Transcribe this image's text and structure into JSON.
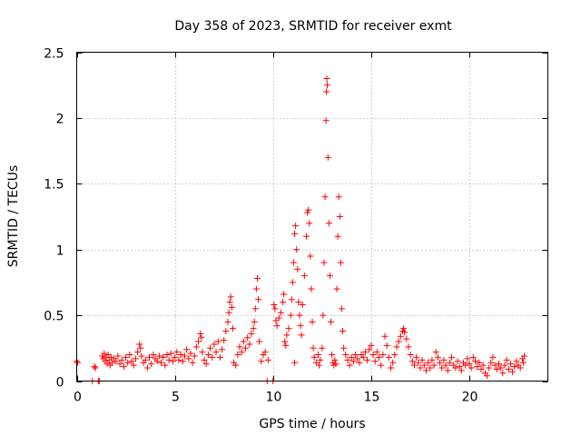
{
  "chart_data": {
    "type": "scatter",
    "title": "Day 358 of 2023, SRMTID for receiver exmt",
    "xlabel": "GPS time / hours",
    "ylabel": "SRMTID / TECUs",
    "xlim": [
      0,
      24
    ],
    "ylim": [
      0,
      2.5
    ],
    "x_ticks": [
      0,
      5,
      10,
      15,
      20
    ],
    "x_tick_labels": [
      "0",
      "5",
      "10",
      "15",
      "20"
    ],
    "y_ticks": [
      0,
      0.5,
      1,
      1.5,
      2,
      2.5
    ],
    "y_tick_labels": [
      "0",
      "0.5",
      "1",
      "1.5",
      "2",
      "2.5"
    ],
    "grid": true,
    "marker": "plus",
    "color": "#ff0000",
    "series": [
      {
        "name": "SRMTID",
        "points": [
          [
            0.0,
            0.15
          ],
          [
            0.05,
            0.14
          ],
          [
            0.8,
            0.0
          ],
          [
            0.9,
            0.11
          ],
          [
            0.95,
            0.1
          ],
          [
            1.1,
            0.0
          ],
          [
            1.15,
            0.0
          ],
          [
            1.3,
            0.19
          ],
          [
            1.35,
            0.17
          ],
          [
            1.4,
            0.21
          ],
          [
            1.45,
            0.15
          ],
          [
            1.5,
            0.18
          ],
          [
            1.55,
            0.13
          ],
          [
            1.6,
            0.2
          ],
          [
            1.65,
            0.16
          ],
          [
            1.7,
            0.12
          ],
          [
            1.75,
            0.18
          ],
          [
            1.8,
            0.14
          ],
          [
            1.9,
            0.17
          ],
          [
            2.0,
            0.15
          ],
          [
            2.1,
            0.19
          ],
          [
            2.2,
            0.13
          ],
          [
            2.3,
            0.16
          ],
          [
            2.4,
            0.11
          ],
          [
            2.5,
            0.18
          ],
          [
            2.6,
            0.14
          ],
          [
            2.7,
            0.2
          ],
          [
            2.8,
            0.15
          ],
          [
            2.9,
            0.12
          ],
          [
            3.0,
            0.17
          ],
          [
            3.1,
            0.22
          ],
          [
            3.2,
            0.28
          ],
          [
            3.25,
            0.25
          ],
          [
            3.3,
            0.19
          ],
          [
            3.4,
            0.14
          ],
          [
            3.5,
            0.16
          ],
          [
            3.6,
            0.1
          ],
          [
            3.7,
            0.18
          ],
          [
            3.8,
            0.13
          ],
          [
            3.9,
            0.2
          ],
          [
            4.0,
            0.17
          ],
          [
            4.1,
            0.15
          ],
          [
            4.2,
            0.19
          ],
          [
            4.3,
            0.14
          ],
          [
            4.4,
            0.18
          ],
          [
            4.5,
            0.12
          ],
          [
            4.6,
            0.2
          ],
          [
            4.7,
            0.16
          ],
          [
            4.8,
            0.21
          ],
          [
            4.9,
            0.15
          ],
          [
            5.0,
            0.18
          ],
          [
            5.1,
            0.22
          ],
          [
            5.2,
            0.16
          ],
          [
            5.3,
            0.2
          ],
          [
            5.4,
            0.15
          ],
          [
            5.5,
            0.19
          ],
          [
            5.6,
            0.24
          ],
          [
            5.7,
            0.17
          ],
          [
            5.8,
            0.21
          ],
          [
            5.9,
            0.14
          ],
          [
            6.0,
            0.19
          ],
          [
            6.1,
            0.26
          ],
          [
            6.2,
            0.3
          ],
          [
            6.3,
            0.36
          ],
          [
            6.35,
            0.33
          ],
          [
            6.4,
            0.22
          ],
          [
            6.5,
            0.16
          ],
          [
            6.6,
            0.13
          ],
          [
            6.7,
            0.2
          ],
          [
            6.8,
            0.25
          ],
          [
            6.9,
            0.18
          ],
          [
            7.0,
            0.28
          ],
          [
            7.1,
            0.22
          ],
          [
            7.2,
            0.3
          ],
          [
            7.3,
            0.18
          ],
          [
            7.4,
            0.24
          ],
          [
            7.5,
            0.31
          ],
          [
            7.6,
            0.38
          ],
          [
            7.7,
            0.45
          ],
          [
            7.75,
            0.52
          ],
          [
            7.8,
            0.6
          ],
          [
            7.85,
            0.64
          ],
          [
            7.9,
            0.56
          ],
          [
            7.95,
            0.4
          ],
          [
            8.0,
            0.14
          ],
          [
            8.1,
            0.12
          ],
          [
            8.2,
            0.2
          ],
          [
            8.3,
            0.26
          ],
          [
            8.4,
            0.22
          ],
          [
            8.5,
            0.3
          ],
          [
            8.6,
            0.25
          ],
          [
            8.7,
            0.33
          ],
          [
            8.8,
            0.28
          ],
          [
            8.9,
            0.36
          ],
          [
            9.0,
            0.4
          ],
          [
            9.05,
            0.45
          ],
          [
            9.1,
            0.55
          ],
          [
            9.15,
            0.7
          ],
          [
            9.2,
            0.78
          ],
          [
            9.25,
            0.62
          ],
          [
            9.3,
            0.3
          ],
          [
            9.4,
            0.15
          ],
          [
            9.5,
            0.2
          ],
          [
            9.6,
            0.22
          ],
          [
            9.7,
            0.0
          ],
          [
            9.75,
            0.16
          ],
          [
            10.0,
            0.0
          ],
          [
            10.05,
            0.58
          ],
          [
            10.1,
            0.55
          ],
          [
            10.15,
            0.46
          ],
          [
            10.2,
            0.42
          ],
          [
            10.3,
            0.48
          ],
          [
            10.4,
            0.52
          ],
          [
            10.5,
            0.6
          ],
          [
            10.55,
            0.66
          ],
          [
            10.6,
            0.3
          ],
          [
            10.65,
            0.27
          ],
          [
            10.7,
            0.35
          ],
          [
            10.8,
            0.4
          ],
          [
            10.9,
            0.5
          ],
          [
            10.95,
            0.62
          ],
          [
            11.0,
            0.75
          ],
          [
            11.05,
            0.9
          ],
          [
            11.1,
            1.12
          ],
          [
            11.15,
            1.18
          ],
          [
            11.2,
            1.0
          ],
          [
            11.25,
            0.85
          ],
          [
            11.3,
            0.6
          ],
          [
            11.35,
            0.5
          ],
          [
            11.4,
            0.42
          ],
          [
            11.45,
            0.35
          ],
          [
            11.1,
            0.14
          ],
          [
            11.5,
            0.58
          ],
          [
            11.6,
            0.8
          ],
          [
            11.7,
            1.1
          ],
          [
            11.75,
            1.28
          ],
          [
            11.8,
            1.3
          ],
          [
            11.85,
            1.2
          ],
          [
            11.9,
            0.95
          ],
          [
            11.95,
            0.7
          ],
          [
            12.0,
            0.45
          ],
          [
            12.05,
            0.25
          ],
          [
            12.1,
            0.18
          ],
          [
            12.2,
            0.14
          ],
          [
            12.3,
            0.2
          ],
          [
            12.35,
            0.12
          ],
          [
            12.4,
            0.16
          ],
          [
            12.5,
            0.25
          ],
          [
            12.55,
            0.5
          ],
          [
            12.6,
            0.9
          ],
          [
            12.65,
            1.4
          ],
          [
            12.7,
            1.98
          ],
          [
            12.72,
            2.2
          ],
          [
            12.74,
            2.3
          ],
          [
            12.76,
            2.25
          ],
          [
            12.8,
            1.7
          ],
          [
            12.85,
            1.2
          ],
          [
            12.9,
            0.8
          ],
          [
            12.95,
            0.45
          ],
          [
            13.0,
            0.2
          ],
          [
            13.05,
            0.14
          ],
          [
            13.1,
            0.12
          ],
          [
            13.15,
            0.16
          ],
          [
            13.2,
            0.13
          ],
          [
            13.25,
            0.7
          ],
          [
            13.3,
            1.1
          ],
          [
            13.35,
            1.4
          ],
          [
            13.4,
            1.25
          ],
          [
            13.45,
            0.9
          ],
          [
            13.5,
            0.55
          ],
          [
            13.55,
            0.38
          ],
          [
            13.6,
            0.25
          ],
          [
            13.7,
            0.2
          ],
          [
            13.8,
            0.16
          ],
          [
            13.9,
            0.12
          ],
          [
            14.0,
            0.18
          ],
          [
            14.1,
            0.15
          ],
          [
            14.2,
            0.2
          ],
          [
            14.3,
            0.17
          ],
          [
            14.4,
            0.14
          ],
          [
            14.5,
            0.2
          ],
          [
            14.6,
            0.18
          ],
          [
            14.7,
            0.22
          ],
          [
            14.8,
            0.16
          ],
          [
            14.9,
            0.24
          ],
          [
            15.0,
            0.27
          ],
          [
            15.1,
            0.2
          ],
          [
            15.2,
            0.15
          ],
          [
            15.3,
            0.22
          ],
          [
            15.4,
            0.18
          ],
          [
            15.5,
            0.12
          ],
          [
            15.6,
            0.2
          ],
          [
            15.7,
            0.34
          ],
          [
            15.8,
            0.27
          ],
          [
            15.9,
            0.18
          ],
          [
            16.0,
            0.1
          ],
          [
            16.1,
            0.14
          ],
          [
            16.2,
            0.2
          ],
          [
            16.3,
            0.26
          ],
          [
            16.4,
            0.3
          ],
          [
            16.5,
            0.34
          ],
          [
            16.6,
            0.38
          ],
          [
            16.65,
            0.4
          ],
          [
            16.7,
            0.37
          ],
          [
            16.8,
            0.32
          ],
          [
            16.9,
            0.26
          ],
          [
            17.0,
            0.2
          ],
          [
            17.1,
            0.15
          ],
          [
            17.2,
            0.12
          ],
          [
            17.3,
            0.18
          ],
          [
            17.4,
            0.14
          ],
          [
            17.5,
            0.1
          ],
          [
            17.6,
            0.16
          ],
          [
            17.7,
            0.12
          ],
          [
            17.8,
            0.08
          ],
          [
            17.9,
            0.14
          ],
          [
            18.0,
            0.1
          ],
          [
            18.1,
            0.16
          ],
          [
            18.2,
            0.12
          ],
          [
            18.3,
            0.22
          ],
          [
            18.4,
            0.18
          ],
          [
            18.5,
            0.14
          ],
          [
            18.6,
            0.1
          ],
          [
            18.7,
            0.16
          ],
          [
            18.8,
            0.12
          ],
          [
            18.9,
            0.08
          ],
          [
            19.0,
            0.14
          ],
          [
            19.1,
            0.18
          ],
          [
            19.2,
            0.12
          ],
          [
            19.3,
            0.1
          ],
          [
            19.4,
            0.15
          ],
          [
            19.5,
            0.11
          ],
          [
            19.6,
            0.08
          ],
          [
            19.7,
            0.14
          ],
          [
            19.8,
            0.12
          ],
          [
            19.9,
            0.17
          ],
          [
            20.0,
            0.13
          ],
          [
            20.1,
            0.1
          ],
          [
            20.2,
            0.18
          ],
          [
            20.3,
            0.15
          ],
          [
            20.4,
            0.11
          ],
          [
            20.5,
            0.14
          ],
          [
            20.6,
            0.09
          ],
          [
            20.7,
            0.12
          ],
          [
            20.8,
            0.06
          ],
          [
            20.9,
            0.04
          ],
          [
            21.0,
            0.1
          ],
          [
            21.1,
            0.14
          ],
          [
            21.2,
            0.18
          ],
          [
            21.3,
            0.12
          ],
          [
            21.4,
            0.09
          ],
          [
            21.5,
            0.13
          ],
          [
            21.6,
            0.1
          ],
          [
            21.7,
            0.06
          ],
          [
            21.8,
            0.12
          ],
          [
            21.9,
            0.16
          ],
          [
            22.0,
            0.09
          ],
          [
            22.1,
            0.13
          ],
          [
            22.2,
            0.07
          ],
          [
            22.3,
            0.11
          ],
          [
            22.4,
            0.15
          ],
          [
            22.5,
            0.12
          ],
          [
            22.6,
            0.1
          ],
          [
            22.7,
            0.17
          ],
          [
            22.75,
            0.14
          ],
          [
            22.8,
            0.19
          ]
        ]
      }
    ]
  }
}
